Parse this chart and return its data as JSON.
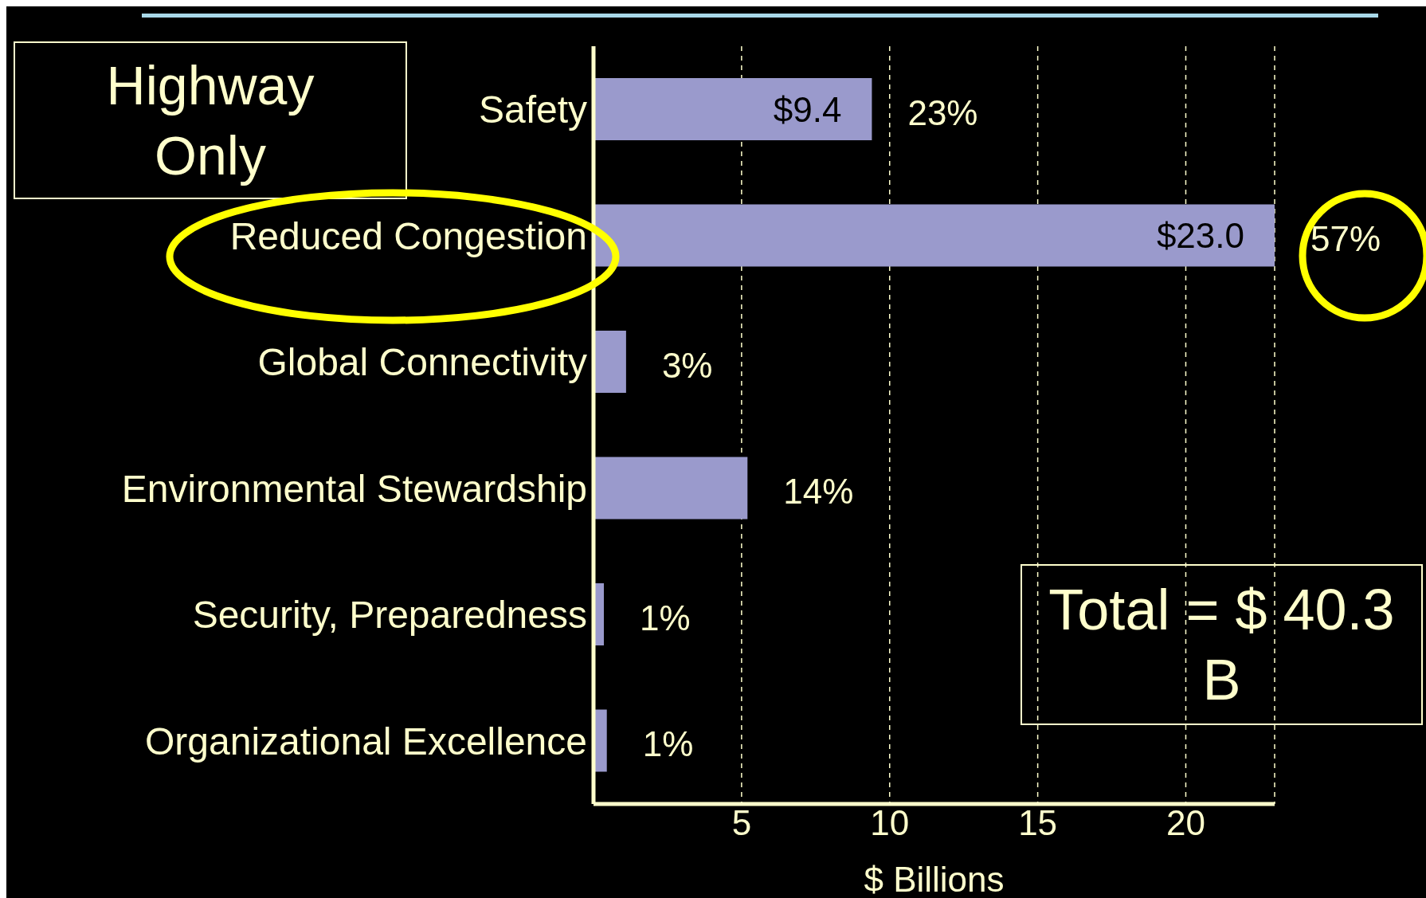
{
  "chart_data": {
    "type": "bar",
    "orientation": "horizontal",
    "title": "Highway Only",
    "xlabel": "$ Billions",
    "categories": [
      "Safety",
      "Reduced Congestion",
      "Global Connectivity",
      "Environmental Stewardship",
      "Security, Preparedness",
      "Organizational Excellence"
    ],
    "values": [
      9.4,
      23.0,
      1.1,
      5.2,
      0.35,
      0.45
    ],
    "value_labels": [
      "$9.4",
      "$23.0",
      null,
      null,
      null,
      null
    ],
    "color": "#9a9acc",
    "xlim": [
      0,
      23
    ],
    "xticks": [
      5,
      10,
      15,
      20
    ],
    "grid": "x",
    "legend": false,
    "annotations": [
      {
        "text": "23%",
        "x": 9.4,
        "y": "Safety"
      },
      {
        "text": "57%",
        "x": 23.0,
        "y": "Reduced Congestion"
      },
      {
        "text": "3%",
        "x": 1.1,
        "y": "Global Connectivity"
      },
      {
        "text": "14%",
        "x": 5.2,
        "y": "Environmental Stewardship"
      },
      {
        "text": "1%",
        "x": 0.35,
        "y": "Security, Preparedness"
      },
      {
        "text": "1%",
        "x": 0.45,
        "y": "Organizational Excellence"
      },
      "Total = $ 40.3 B"
    ]
  }
}
